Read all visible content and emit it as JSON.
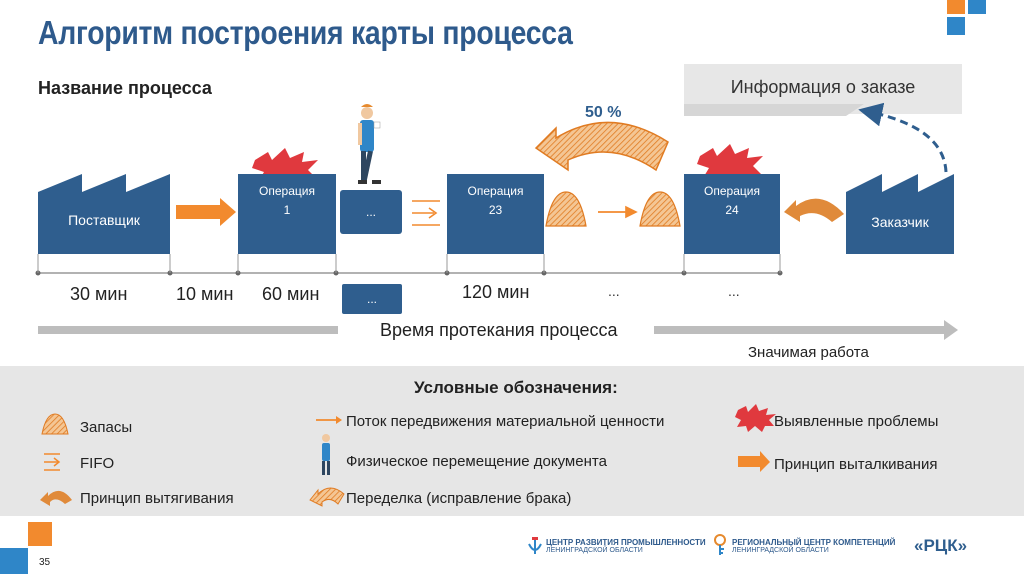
{
  "title": "Алгоритм построения карты процесса",
  "process_name_label": "Название процесса",
  "order_info": "Информация о заказе",
  "percent": "50 %",
  "supplier": "Поставщик",
  "customer": "Заказчик",
  "operations": [
    {
      "label": "Операция",
      "num": "1"
    },
    {
      "label": "Операция",
      "num": "23"
    },
    {
      "label": "Операция",
      "num": "24"
    }
  ],
  "ellipsis": "...",
  "timeline": {
    "t1": "30 мин",
    "t2": "10 мин",
    "t3": "60 мин",
    "t4": "120 мин",
    "t5": "...",
    "t6": "..."
  },
  "time_label": "Время протекания процесса",
  "significant_work": "Значимая работа",
  "legend": {
    "title": "Условные обозначения:",
    "stock": "Запасы",
    "fifo": "FIFO",
    "pull": "Принцип вытягивания",
    "material_flow": "Поток передвижения материальной ценности",
    "doc_move": "Физическое перемещение документа",
    "rework": "Переделка (исправление брака)",
    "problems": "Выявленные проблемы",
    "push": "Принцип выталкивания"
  },
  "page_number": "35",
  "logos": {
    "l1_line1": "ЦЕНТР РАЗВИТИЯ ПРОМЫШЛЕННОСТИ",
    "l1_line2": "ЛЕНИНГРАДСКОЙ ОБЛАСТИ",
    "l2_line1": "РЕГИОНАЛЬНЫЙ ЦЕНТР КОМПЕТЕНЦИЙ",
    "l2_line2": "ЛЕНИНГРАДСКОЙ ОБЛАСТИ",
    "l3": "«РЦК»"
  },
  "colors": {
    "primary_blue": "#2f5e8e",
    "orange": "#f28a2e",
    "problem_red": "#e0393e",
    "accent_blue": "#2f86c8",
    "legend_bg": "#e6e6e6"
  }
}
